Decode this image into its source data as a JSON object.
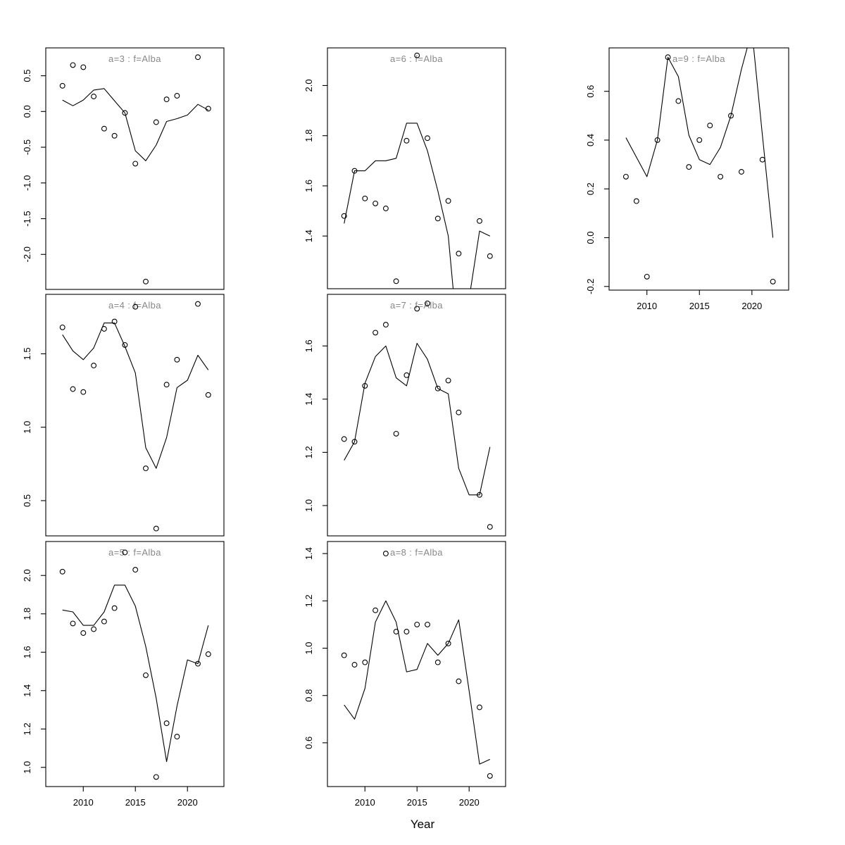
{
  "figure": {
    "xlabel": "Year",
    "background_color": "#ffffff",
    "panel_title_color": "#888888",
    "plot_color": "#000000"
  },
  "chart_data": [
    {
      "type": "scatter",
      "id": "a3",
      "panel_label": "a=3 : f=Alba",
      "xlim": [
        2006.4,
        2023.5
      ],
      "xticks": [
        2010,
        2015,
        2020
      ],
      "show_x_axis": false,
      "ylim": [
        -2.49,
        0.89
      ],
      "yticks": [
        "0.5",
        "0.0",
        "-0.5",
        "-1.0",
        "-1.5",
        "-2.0"
      ],
      "points_years": [
        2008,
        2009,
        2010,
        2011,
        2012,
        2013,
        2014,
        2015,
        2016,
        2017,
        2018,
        2019,
        2021,
        2022
      ],
      "points_values": [
        0.36,
        0.65,
        0.62,
        0.21,
        -0.24,
        -0.34,
        -0.02,
        -0.73,
        -2.38,
        -0.15,
        0.17,
        0.22,
        0.76,
        0.04
      ],
      "line_years": [
        2008,
        2009,
        2010,
        2011,
        2012,
        2013,
        2014,
        2015,
        2016,
        2017,
        2018,
        2019,
        2020,
        2021,
        2022
      ],
      "line_values": [
        0.16,
        0.08,
        0.16,
        0.3,
        0.32,
        0.15,
        -0.02,
        -0.55,
        -0.69,
        -0.47,
        -0.14,
        -0.1,
        -0.05,
        0.1,
        0.02
      ]
    },
    {
      "type": "scatter",
      "id": "a6",
      "panel_label": "a=6 : f=Alba",
      "xlim": [
        2006.4,
        2023.5
      ],
      "xticks": [
        2010,
        2015,
        2020
      ],
      "show_x_axis": false,
      "ylim": [
        1.19,
        2.15
      ],
      "yticks": [
        "2.0",
        "1.8",
        "1.6",
        "1.4"
      ],
      "points_years": [
        2008,
        2009,
        2010,
        2011,
        2012,
        2013,
        2014,
        2015,
        2016,
        2017,
        2018,
        2019,
        2021,
        2022
      ],
      "points_values": [
        1.48,
        1.66,
        1.55,
        1.53,
        1.51,
        1.22,
        1.78,
        2.12,
        1.79,
        1.47,
        1.54,
        1.33,
        1.46,
        1.32
      ],
      "line_years": [
        2008,
        2009,
        2010,
        2011,
        2012,
        2013,
        2014,
        2015,
        2016,
        2017,
        2018,
        2019,
        2020,
        2021,
        2022
      ],
      "line_values": [
        1.45,
        1.66,
        1.66,
        1.7,
        1.7,
        1.71,
        1.85,
        1.85,
        1.74,
        1.58,
        1.4,
        0.95,
        1.15,
        1.42,
        1.4
      ]
    },
    {
      "type": "scatter",
      "id": "a9",
      "panel_label": "a=9 : f=Alba",
      "xlim": [
        2006.4,
        2023.5
      ],
      "xticks": [
        2010,
        2015,
        2020
      ],
      "show_x_axis": true,
      "ylim": [
        -0.215,
        0.778
      ],
      "yticks": [
        "0.6",
        "0.4",
        "0.2",
        "0.0",
        "-0.2"
      ],
      "points_years": [
        2008,
        2009,
        2010,
        2011,
        2012,
        2013,
        2014,
        2015,
        2016,
        2017,
        2018,
        2019,
        2021,
        2022
      ],
      "points_values": [
        0.25,
        0.15,
        -0.16,
        0.4,
        0.74,
        0.56,
        0.29,
        0.4,
        0.46,
        0.25,
        0.5,
        0.27,
        0.32,
        -0.18
      ],
      "line_years": [
        2008,
        2009,
        2010,
        2011,
        2012,
        2013,
        2014,
        2015,
        2016,
        2017,
        2018,
        2019,
        2020,
        2021,
        2022
      ],
      "line_values": [
        0.41,
        0.33,
        0.25,
        0.4,
        0.74,
        0.66,
        0.42,
        0.32,
        0.3,
        0.37,
        0.5,
        0.69,
        0.85,
        0.42,
        0.0
      ]
    },
    {
      "type": "scatter",
      "id": "a4",
      "panel_label": "a=4 : f=Alba",
      "xlim": [
        2006.4,
        2023.5
      ],
      "xticks": [
        2010,
        2015,
        2020
      ],
      "show_x_axis": false,
      "ylim": [
        0.26,
        1.905
      ],
      "yticks": [
        "1.5",
        "1.0",
        "0.5"
      ],
      "points_years": [
        2008,
        2009,
        2010,
        2011,
        2012,
        2013,
        2014,
        2015,
        2016,
        2017,
        2018,
        2019,
        2021,
        2022
      ],
      "points_values": [
        1.68,
        1.26,
        1.24,
        1.42,
        1.67,
        1.72,
        1.56,
        1.82,
        0.72,
        0.31,
        1.29,
        1.46,
        1.84,
        1.22
      ],
      "line_years": [
        2008,
        2009,
        2010,
        2011,
        2012,
        2013,
        2014,
        2015,
        2016,
        2017,
        2018,
        2019,
        2020,
        2021,
        2022
      ],
      "line_values": [
        1.63,
        1.52,
        1.46,
        1.54,
        1.71,
        1.71,
        1.55,
        1.37,
        0.86,
        0.72,
        0.93,
        1.27,
        1.32,
        1.49,
        1.39
      ]
    },
    {
      "type": "scatter",
      "id": "a7",
      "panel_label": "a=7 : f=Alba",
      "xlim": [
        2006.4,
        2023.5
      ],
      "xticks": [
        2010,
        2015,
        2020
      ],
      "show_x_axis": false,
      "ylim": [
        0.886,
        1.794
      ],
      "yticks": [
        "1.6",
        "1.4",
        "1.2",
        "1.0"
      ],
      "points_years": [
        2008,
        2009,
        2010,
        2011,
        2012,
        2013,
        2014,
        2015,
        2016,
        2017,
        2018,
        2019,
        2021,
        2022
      ],
      "points_values": [
        1.25,
        1.24,
        1.45,
        1.65,
        1.68,
        1.27,
        1.49,
        1.74,
        1.76,
        1.44,
        1.47,
        1.35,
        1.04,
        0.92
      ],
      "line_years": [
        2008,
        2009,
        2010,
        2011,
        2012,
        2013,
        2014,
        2015,
        2016,
        2017,
        2018,
        2019,
        2020,
        2021,
        2022
      ],
      "line_values": [
        1.17,
        1.24,
        1.46,
        1.56,
        1.6,
        1.48,
        1.45,
        1.61,
        1.55,
        1.44,
        1.42,
        1.14,
        1.04,
        1.04,
        1.22
      ]
    },
    {
      "type": "scatter",
      "id": "a5",
      "panel_label": "a=5 : f=Alba",
      "xlim": [
        2006.4,
        2023.5
      ],
      "xticks": [
        2010,
        2015,
        2020
      ],
      "show_x_axis": true,
      "ylim": [
        0.9,
        2.177
      ],
      "yticks": [
        "2.0",
        "1.8",
        "1.6",
        "1.4",
        "1.2",
        "1.0"
      ],
      "points_years": [
        2008,
        2009,
        2010,
        2011,
        2012,
        2013,
        2014,
        2015,
        2016,
        2017,
        2018,
        2019,
        2021,
        2022
      ],
      "points_values": [
        2.02,
        1.75,
        1.7,
        1.72,
        1.76,
        1.83,
        2.12,
        2.03,
        1.48,
        0.95,
        1.23,
        1.16,
        1.54,
        1.59
      ],
      "line_years": [
        2008,
        2009,
        2010,
        2011,
        2012,
        2013,
        2014,
        2015,
        2016,
        2017,
        2018,
        2019,
        2020,
        2021,
        2022
      ],
      "line_values": [
        1.82,
        1.81,
        1.74,
        1.74,
        1.81,
        1.95,
        1.95,
        1.84,
        1.63,
        1.36,
        1.03,
        1.32,
        1.56,
        1.54,
        1.74
      ]
    },
    {
      "type": "scatter",
      "id": "a8",
      "panel_label": "a=8 : f=Alba",
      "xlim": [
        2006.4,
        2023.5
      ],
      "xticks": [
        2010,
        2015,
        2020
      ],
      "show_x_axis": true,
      "ylim": [
        0.415,
        1.451
      ],
      "yticks": [
        "1.4",
        "1.2",
        "1.0",
        "0.8",
        "0.6"
      ],
      "points_years": [
        2008,
        2009,
        2010,
        2011,
        2012,
        2013,
        2014,
        2015,
        2016,
        2017,
        2018,
        2019,
        2021,
        2022
      ],
      "points_values": [
        0.97,
        0.93,
        0.94,
        1.16,
        1.4,
        1.07,
        1.07,
        1.1,
        1.1,
        0.94,
        1.02,
        0.86,
        0.75,
        0.46
      ],
      "line_years": [
        2008,
        2009,
        2010,
        2011,
        2012,
        2013,
        2014,
        2015,
        2016,
        2017,
        2018,
        2019,
        2020,
        2021,
        2022
      ],
      "line_values": [
        0.76,
        0.7,
        0.83,
        1.11,
        1.2,
        1.11,
        0.9,
        0.91,
        1.02,
        0.97,
        1.02,
        1.12,
        0.82,
        0.51,
        0.53
      ]
    }
  ]
}
